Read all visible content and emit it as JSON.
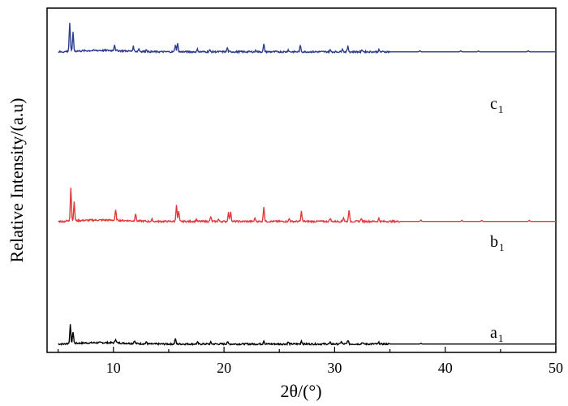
{
  "chart_data": {
    "type": "line",
    "title": "",
    "xlabel": "2θ/(°)",
    "ylabel": "Relative Intensity/(a.u)",
    "xlim": [
      4,
      50
    ],
    "x_ticks": [
      10,
      20,
      30,
      40,
      50
    ],
    "y_ticks_labels": false,
    "grid": false,
    "legend": "none",
    "series": [
      {
        "name": "a1",
        "label_main": "a",
        "label_sub": "1",
        "color": "#000000",
        "baseline": 0.0,
        "noise_end": 35,
        "peaks": [
          {
            "x": 6.1,
            "h": 0.55
          },
          {
            "x": 6.35,
            "h": 0.35
          },
          {
            "x": 10.2,
            "h": 0.12
          },
          {
            "x": 11.9,
            "h": 0.09
          },
          {
            "x": 13.0,
            "h": 0.06
          },
          {
            "x": 15.6,
            "h": 0.16
          },
          {
            "x": 17.6,
            "h": 0.05
          },
          {
            "x": 18.8,
            "h": 0.05
          },
          {
            "x": 20.3,
            "h": 0.07
          },
          {
            "x": 23.6,
            "h": 0.11
          },
          {
            "x": 25.8,
            "h": 0.06
          },
          {
            "x": 27.0,
            "h": 0.1
          },
          {
            "x": 29.6,
            "h": 0.04
          },
          {
            "x": 30.6,
            "h": 0.08
          },
          {
            "x": 31.2,
            "h": 0.12
          },
          {
            "x": 32.5,
            "h": 0.05
          },
          {
            "x": 34.0,
            "h": 0.04
          },
          {
            "x": 37.8,
            "h": 0.02
          }
        ]
      },
      {
        "name": "b1",
        "label_main": "b",
        "label_sub": "1",
        "color": "#e03a3a",
        "baseline": 3.65,
        "noise_end": 36,
        "peaks": [
          {
            "x": 6.15,
            "h": 1.0
          },
          {
            "x": 6.45,
            "h": 0.55
          },
          {
            "x": 10.2,
            "h": 0.3
          },
          {
            "x": 12.0,
            "h": 0.22
          },
          {
            "x": 13.5,
            "h": 0.06
          },
          {
            "x": 15.7,
            "h": 0.5
          },
          {
            "x": 15.9,
            "h": 0.3
          },
          {
            "x": 17.5,
            "h": 0.06
          },
          {
            "x": 18.8,
            "h": 0.14
          },
          {
            "x": 19.5,
            "h": 0.06
          },
          {
            "x": 20.4,
            "h": 0.26
          },
          {
            "x": 20.6,
            "h": 0.3
          },
          {
            "x": 22.8,
            "h": 0.1
          },
          {
            "x": 23.6,
            "h": 0.45
          },
          {
            "x": 25.9,
            "h": 0.08
          },
          {
            "x": 27.0,
            "h": 0.3
          },
          {
            "x": 29.6,
            "h": 0.1
          },
          {
            "x": 30.8,
            "h": 0.12
          },
          {
            "x": 31.3,
            "h": 0.35
          },
          {
            "x": 32.4,
            "h": 0.1
          },
          {
            "x": 34.0,
            "h": 0.09
          },
          {
            "x": 37.8,
            "h": 0.04
          },
          {
            "x": 41.5,
            "h": 0.03
          },
          {
            "x": 43.3,
            "h": 0.03
          },
          {
            "x": 47.6,
            "h": 0.03
          }
        ]
      },
      {
        "name": "c1",
        "label_main": "c",
        "label_sub": "1",
        "color": "#2b3d8f",
        "baseline": 8.7,
        "noise_end": 35,
        "peaks": [
          {
            "x": 6.05,
            "h": 0.85
          },
          {
            "x": 6.35,
            "h": 0.55
          },
          {
            "x": 10.1,
            "h": 0.18
          },
          {
            "x": 11.8,
            "h": 0.14
          },
          {
            "x": 12.3,
            "h": 0.08
          },
          {
            "x": 13.0,
            "h": 0.07
          },
          {
            "x": 15.6,
            "h": 0.22
          },
          {
            "x": 15.8,
            "h": 0.24
          },
          {
            "x": 17.6,
            "h": 0.07
          },
          {
            "x": 18.7,
            "h": 0.05
          },
          {
            "x": 20.3,
            "h": 0.12
          },
          {
            "x": 22.9,
            "h": 0.05
          },
          {
            "x": 23.6,
            "h": 0.22
          },
          {
            "x": 25.8,
            "h": 0.06
          },
          {
            "x": 26.9,
            "h": 0.18
          },
          {
            "x": 29.6,
            "h": 0.05
          },
          {
            "x": 30.7,
            "h": 0.1
          },
          {
            "x": 31.2,
            "h": 0.16
          },
          {
            "x": 32.5,
            "h": 0.06
          },
          {
            "x": 34.0,
            "h": 0.05
          },
          {
            "x": 37.7,
            "h": 0.03
          },
          {
            "x": 41.4,
            "h": 0.03
          },
          {
            "x": 43.0,
            "h": 0.02
          },
          {
            "x": 47.5,
            "h": 0.03
          }
        ]
      }
    ]
  }
}
